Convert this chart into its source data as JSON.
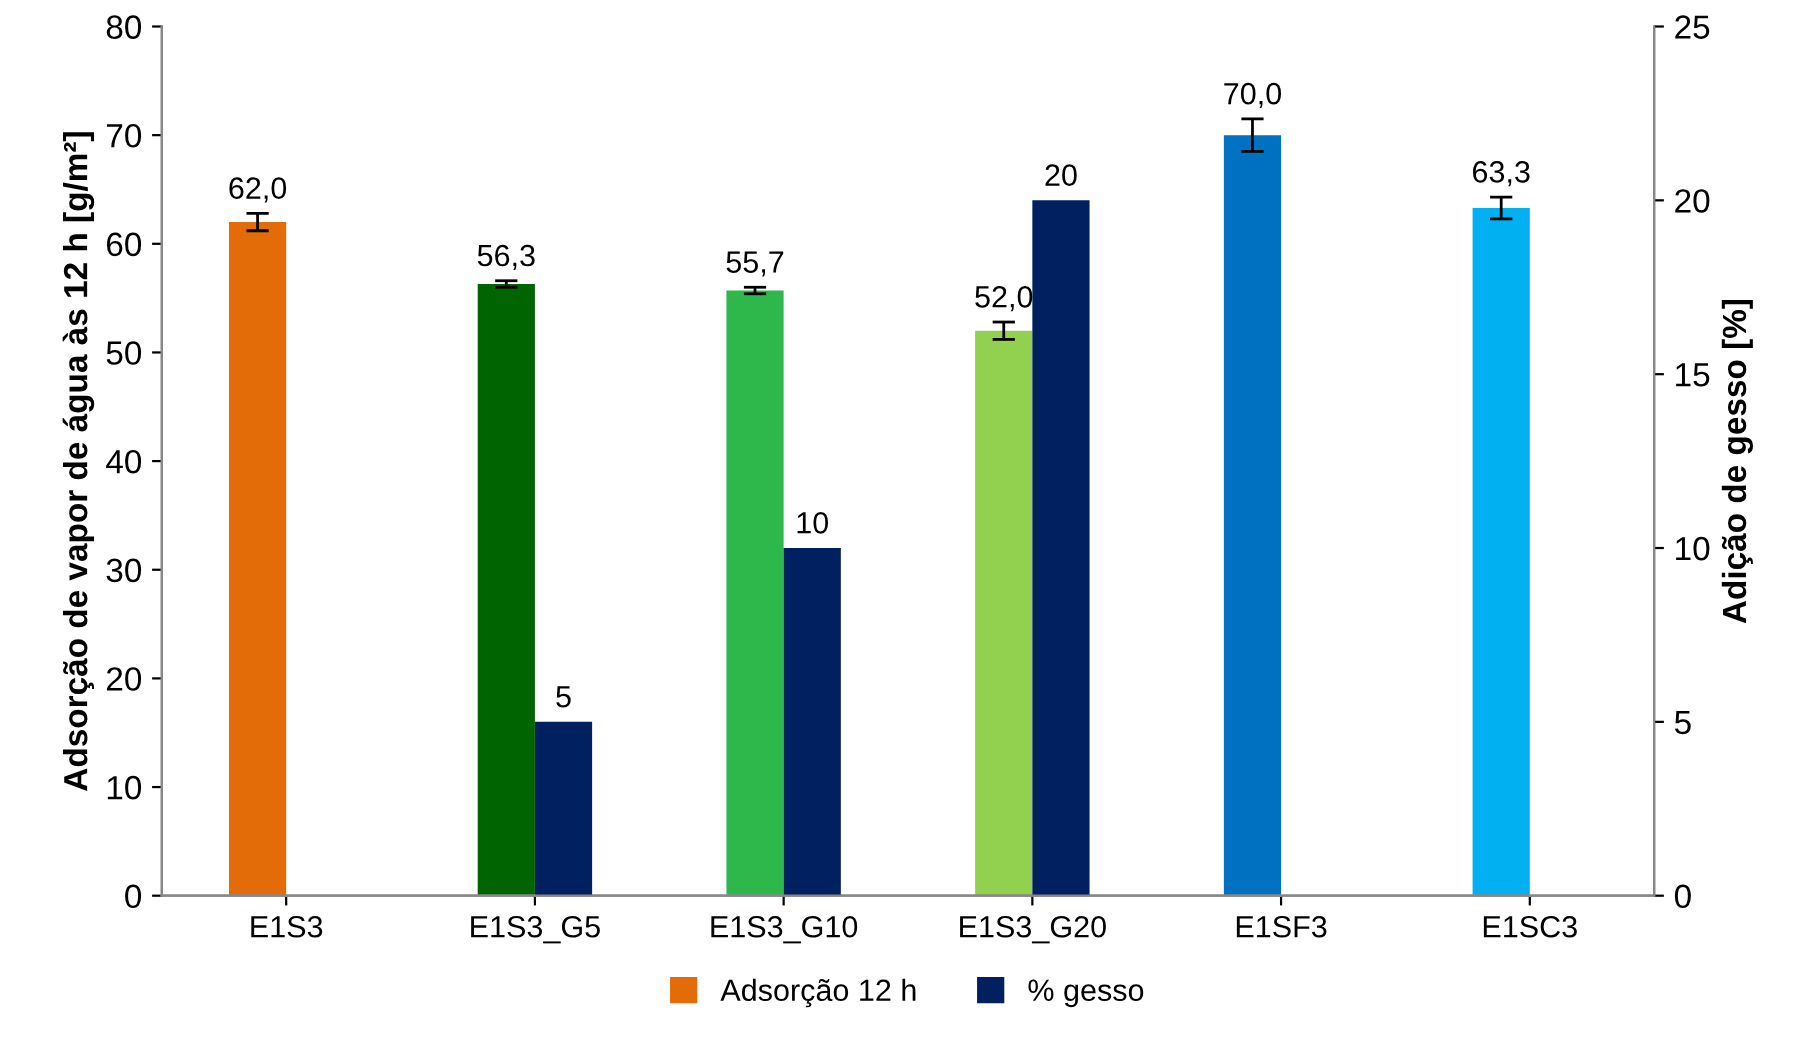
{
  "chart_data": {
    "type": "bar",
    "xlabel": null,
    "ylabel": "Adsorção de vapor de água às 12 h [g/m²]",
    "y2label": "Adição de gesso [%]",
    "categories": [
      "E1S3",
      "E1S3_G5",
      "E1S3_G10",
      "E1S3_G20",
      "E1SF3",
      "E1SC3"
    ],
    "series": [
      {
        "name": "Adsorção 12 h",
        "color": "#e36c09",
        "colors": [
          "#e36c09",
          "#006400",
          "#2eb84b",
          "#92d050",
          "#0070c0",
          "#00b0f0"
        ],
        "values": [
          62.0,
          56.3,
          55.7,
          52.0,
          70.0,
          63.3
        ],
        "errors": [
          0.8,
          0.3,
          0.3,
          0.8,
          1.5,
          1.0
        ],
        "value_labels": [
          "62,0",
          "56,3",
          "55,7",
          "52,0",
          "70,0",
          "63,3"
        ]
      },
      {
        "name": "% gesso",
        "color": "#002060",
        "axis": "y2",
        "values": [
          null,
          5,
          10,
          20,
          null,
          null
        ],
        "value_labels": [
          null,
          "5",
          "10",
          "20",
          null,
          null
        ]
      }
    ],
    "ylim": [
      0,
      80
    ],
    "yticks": [
      0,
      10,
      20,
      30,
      40,
      50,
      60,
      70,
      80
    ],
    "y2lim": [
      0,
      25
    ],
    "y2ticks": [
      0,
      5,
      10,
      15,
      20,
      25
    ],
    "grid": false,
    "legend": "bottom"
  }
}
